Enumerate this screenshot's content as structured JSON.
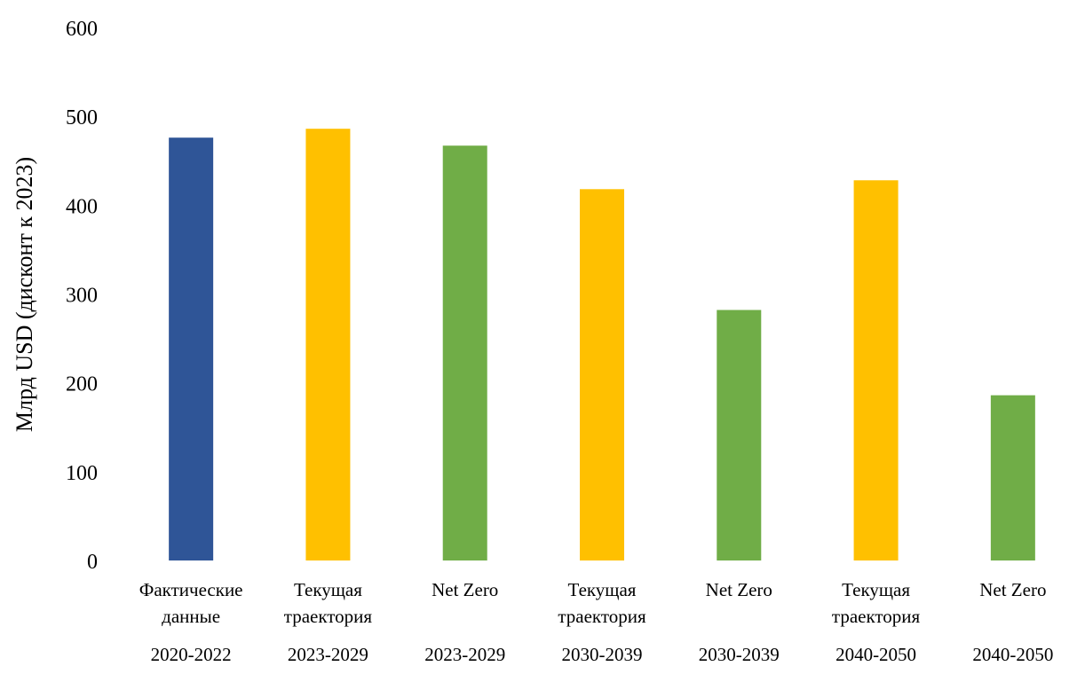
{
  "chart_data": {
    "type": "bar",
    "title": "",
    "ylabel": "Млрд USD (дисконт к 2023)",
    "xlabel": "",
    "ylim": [
      0,
      600
    ],
    "yticks": [
      0,
      100,
      200,
      300,
      400,
      500,
      600
    ],
    "grid": false,
    "legend": "none",
    "categories": [
      {
        "label_lines": [
          "Фактические",
          "данные"
        ],
        "period": "2020-2022"
      },
      {
        "label_lines": [
          "Текущая",
          "траектория"
        ],
        "period": "2023-2029"
      },
      {
        "label_lines": [
          "Net Zero"
        ],
        "period": "2023-2029"
      },
      {
        "label_lines": [
          "Текущая",
          "траектория"
        ],
        "period": "2030-2039"
      },
      {
        "label_lines": [
          "Net Zero"
        ],
        "period": "2030-2039"
      },
      {
        "label_lines": [
          "Текущая",
          "траектория"
        ],
        "period": "2040-2050"
      },
      {
        "label_lines": [
          "Net Zero"
        ],
        "period": "2040-2050"
      }
    ],
    "values": [
      476,
      486,
      467,
      418,
      282,
      428,
      186
    ],
    "bar_colors": [
      "#2F5597",
      "#FFC000",
      "#70AD47",
      "#FFC000",
      "#70AD47",
      "#FFC000",
      "#70AD47"
    ]
  }
}
